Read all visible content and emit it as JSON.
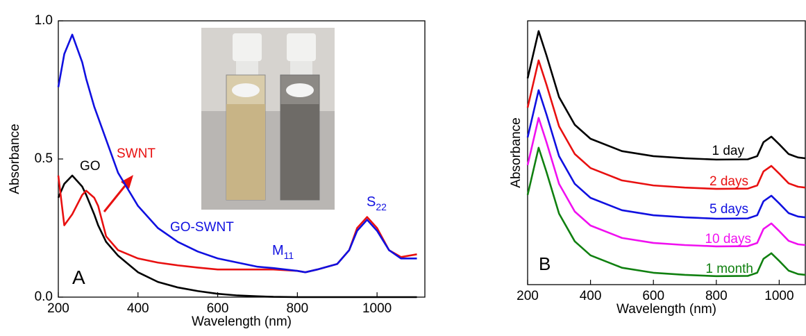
{
  "chart_data": [
    {
      "type": "line",
      "xlabel": "Wavelength (nm)",
      "ylabel": "Absorbance",
      "x": [
        200,
        215,
        235,
        260,
        270,
        290,
        300,
        320,
        350,
        400,
        450,
        500,
        550,
        600,
        650,
        700,
        740,
        800,
        820,
        850,
        900,
        930,
        950,
        975,
        1000,
        1030,
        1060,
        1100
      ],
      "series": [
        {
          "name": "GO",
          "color": "#000000",
          "values": [
            0.36,
            0.41,
            0.44,
            0.4,
            0.37,
            0.3,
            0.26,
            0.2,
            0.15,
            0.09,
            0.055,
            0.035,
            0.022,
            0.012,
            0.006,
            0.003,
            0.001,
            0,
            0,
            0,
            0,
            0,
            0,
            0,
            0,
            0,
            0,
            0
          ]
        },
        {
          "name": "SWNT",
          "color": "#e81010",
          "values": [
            0.44,
            0.26,
            0.3,
            0.37,
            0.385,
            0.36,
            0.33,
            0.22,
            0.17,
            0.14,
            0.125,
            0.115,
            0.107,
            0.1,
            0.1,
            0.1,
            0.1,
            0.095,
            0.09,
            0.1,
            0.12,
            0.17,
            0.25,
            0.29,
            0.25,
            0.17,
            0.145,
            0.155
          ]
        },
        {
          "name": "GO-SWNT",
          "color": "#1010e0",
          "values": [
            0.76,
            0.88,
            0.95,
            0.85,
            0.79,
            0.69,
            0.65,
            0.57,
            0.45,
            0.33,
            0.25,
            0.2,
            0.165,
            0.14,
            0.125,
            0.11,
            0.105,
            0.095,
            0.09,
            0.1,
            0.12,
            0.17,
            0.24,
            0.28,
            0.24,
            0.17,
            0.14,
            0.14
          ]
        }
      ],
      "xlim": [
        200,
        1120
      ],
      "ylim": [
        0,
        1.0
      ],
      "xticks": [
        200,
        400,
        600,
        800,
        1000
      ],
      "yticks": [
        {
          "value": 0,
          "label": "0.0"
        },
        {
          "value": 0.5,
          "label": "0.5"
        },
        {
          "value": 1.0,
          "label": "1.0"
        }
      ],
      "annotations": [
        {
          "text": "M",
          "sub": "11",
          "color": "#1010e0"
        },
        {
          "text": "S",
          "sub": "22",
          "color": "#1010e0"
        },
        {
          "text": "A",
          "color": "#000000"
        }
      ]
    },
    {
      "type": "line",
      "xlabel": "Wavelength (nm)",
      "ylabel": "Absorbance",
      "x": [
        200,
        235,
        260,
        300,
        350,
        400,
        500,
        600,
        700,
        740,
        800,
        900,
        930,
        950,
        975,
        1000,
        1030,
        1060,
        1083
      ],
      "series": [
        {
          "name": "1 day",
          "color": "#000000",
          "values": [
            7.82,
            9.61,
            8.69,
            7.11,
            6.06,
            5.53,
            5.06,
            4.87,
            4.79,
            4.77,
            4.74,
            4.75,
            4.87,
            5.4,
            5.61,
            5.32,
            4.95,
            4.82,
            4.79
          ]
        },
        {
          "name": "2 days",
          "color": "#e81010",
          "values": [
            6.71,
            8.5,
            7.58,
            6.0,
            4.95,
            4.42,
            3.95,
            3.76,
            3.68,
            3.66,
            3.63,
            3.64,
            3.76,
            4.29,
            4.5,
            4.21,
            3.84,
            3.71,
            3.68
          ]
        },
        {
          "name": "5 days",
          "color": "#1010e0",
          "values": [
            5.58,
            7.37,
            6.45,
            4.87,
            3.82,
            3.29,
            2.82,
            2.63,
            2.55,
            2.53,
            2.5,
            2.51,
            2.63,
            3.16,
            3.37,
            3.08,
            2.71,
            2.58,
            2.55
          ]
        },
        {
          "name": "10 days",
          "color": "#f010f0",
          "values": [
            4.53,
            6.32,
            5.4,
            3.82,
            2.77,
            2.24,
            1.77,
            1.58,
            1.5,
            1.48,
            1.45,
            1.46,
            1.58,
            2.11,
            2.32,
            2.03,
            1.66,
            1.53,
            1.5
          ]
        },
        {
          "name": "1 month",
          "color": "#108010",
          "values": [
            3.4,
            5.19,
            4.27,
            2.69,
            1.64,
            1.11,
            0.64,
            0.45,
            0.37,
            0.35,
            0.32,
            0.33,
            0.45,
            0.98,
            1.19,
            0.9,
            0.53,
            0.4,
            0.37
          ]
        }
      ],
      "xlim": [
        200,
        1083
      ],
      "ylim": [
        0,
        10
      ],
      "xticks": [
        200,
        400,
        600,
        800,
        1000
      ],
      "annotations": [
        {
          "text": "B",
          "color": "#000000"
        }
      ]
    }
  ]
}
